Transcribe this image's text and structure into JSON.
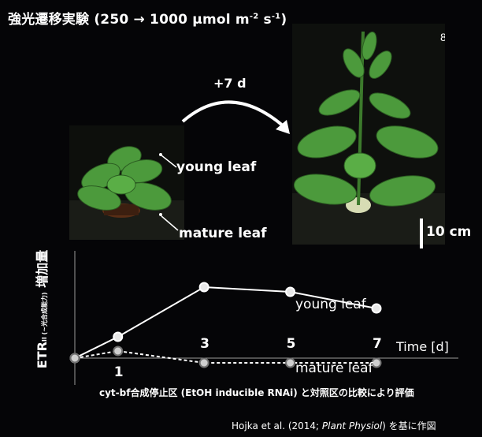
{
  "title": {
    "main": "強光遷移実験 (250 → 1000 μmol m",
    "sup1": "-2",
    "mid": " s",
    "sup2": "-1",
    "close": ")"
  },
  "photos": {
    "arrow_label": "+7 d",
    "young_leaf_label": "young leaf",
    "mature_leaf_label": "mature leaf",
    "scale_label": "10 cm"
  },
  "chart_data": {
    "type": "line",
    "ylabel_main": "ETR",
    "ylabel_sub": "II (~光合成能力)",
    "ylabel_tail": " 増加量",
    "xlabel": "Time [d]",
    "x_ticks": [
      "1",
      "3",
      "5",
      "7"
    ],
    "series": [
      {
        "name": "young leaf",
        "style": "solid",
        "x": [
          0,
          1,
          3,
          5,
          7
        ],
        "y": [
          0,
          0.9,
          3.0,
          2.8,
          2.1
        ]
      },
      {
        "name": "mature leaf",
        "style": "dashed",
        "x": [
          0,
          1,
          3,
          5,
          7
        ],
        "y": [
          0,
          0.3,
          -0.2,
          -0.2,
          -0.2
        ]
      }
    ],
    "xlim": [
      0,
      8.5
    ],
    "ylim": [
      -1.2,
      4.0
    ]
  },
  "note": "cyt-bf合成停止区 (EtOH inducible RNAi) と対照区の比較により評価",
  "credit": {
    "pre": "Hojka et al. (2014; ",
    "journal": "Plant Physiol",
    "post": ") を基に作図"
  },
  "colors": {
    "background": "#050507",
    "text": "#ffffff",
    "leaf": "#4c9a3c",
    "axis": "#9a9a9a"
  }
}
